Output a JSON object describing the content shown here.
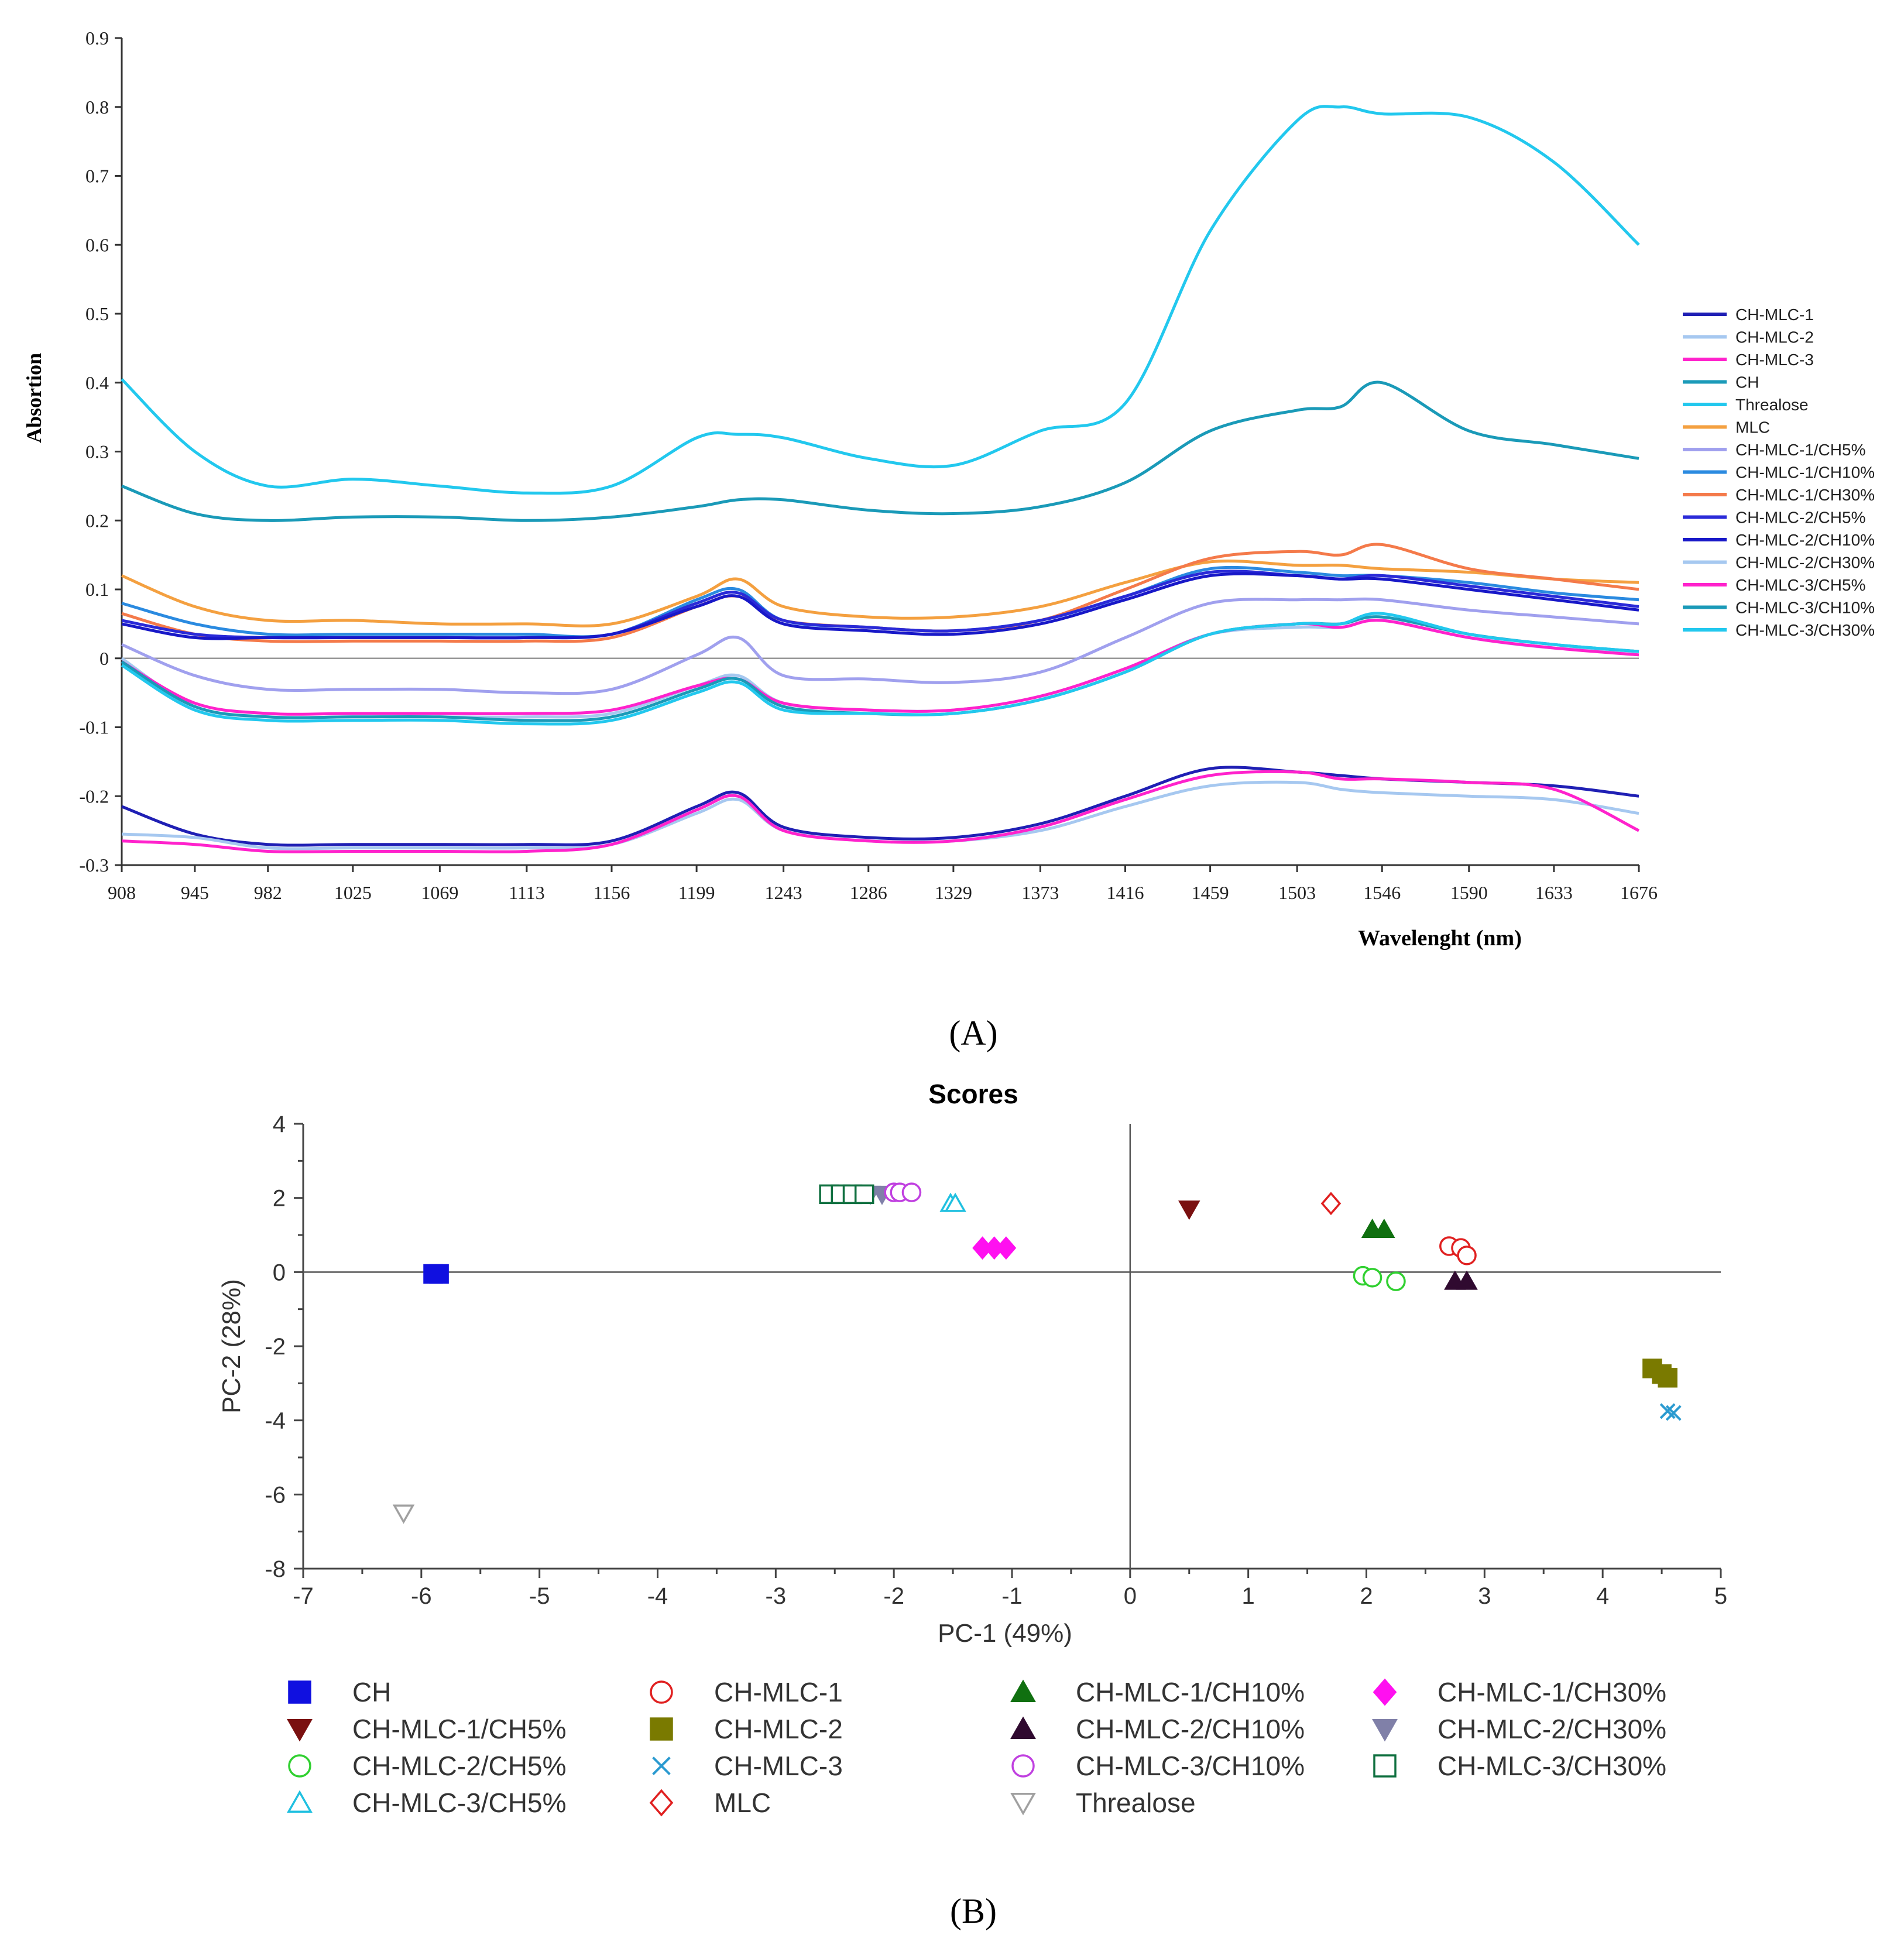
{
  "chart_data": [
    {
      "panel": "A",
      "type": "line",
      "panel_label": "(A)",
      "title": "",
      "xlabel": "Wavelenght (nm)",
      "ylabel": "Absortion",
      "xlim": [
        908,
        1676
      ],
      "ylim": [
        -0.3,
        0.9
      ],
      "xticks": [
        "908",
        "945",
        "982",
        "1025",
        "1069",
        "1113",
        "1156",
        "1199",
        "1243",
        "1286",
        "1329",
        "1373",
        "1416",
        "1459",
        "1503",
        "1546",
        "1590",
        "1633",
        "1676"
      ],
      "yticks": [
        "0.9",
        "0.8",
        "0.7",
        "0.6",
        "0.5",
        "0.4",
        "0.3",
        "0.2",
        "0.1",
        "0",
        "-0.1",
        "-0.2",
        "-0.3"
      ],
      "x": [
        908,
        945,
        982,
        1025,
        1069,
        1113,
        1156,
        1199,
        1220,
        1243,
        1286,
        1329,
        1373,
        1416,
        1459,
        1503,
        1525,
        1546,
        1590,
        1633,
        1676
      ],
      "series": [
        {
          "name": "CH-MLC-1",
          "color": "#1f1fb4",
          "values": [
            -0.215,
            -0.255,
            -0.27,
            -0.27,
            -0.27,
            -0.27,
            -0.265,
            -0.215,
            -0.195,
            -0.245,
            -0.26,
            -0.26,
            -0.24,
            -0.2,
            -0.16,
            -0.165,
            -0.17,
            -0.175,
            -0.18,
            -0.185,
            -0.2
          ]
        },
        {
          "name": "CH-MLC-2",
          "color": "#a6c8f0",
          "values": [
            -0.255,
            -0.26,
            -0.275,
            -0.275,
            -0.275,
            -0.275,
            -0.27,
            -0.225,
            -0.205,
            -0.25,
            -0.265,
            -0.265,
            -0.25,
            -0.215,
            -0.185,
            -0.18,
            -0.19,
            -0.195,
            -0.2,
            -0.205,
            -0.225
          ]
        },
        {
          "name": "CH-MLC-3",
          "color": "#ff22cc",
          "values": [
            -0.265,
            -0.27,
            -0.28,
            -0.28,
            -0.28,
            -0.28,
            -0.27,
            -0.22,
            -0.2,
            -0.25,
            -0.265,
            -0.265,
            -0.245,
            -0.205,
            -0.17,
            -0.165,
            -0.175,
            -0.175,
            -0.18,
            -0.19,
            -0.25
          ]
        },
        {
          "name": "CH",
          "color": "#1a9ab8",
          "values": [
            0.25,
            0.21,
            0.2,
            0.205,
            0.205,
            0.2,
            0.205,
            0.22,
            0.23,
            0.23,
            0.215,
            0.21,
            0.22,
            0.255,
            0.33,
            0.36,
            0.365,
            0.4,
            0.33,
            0.31,
            0.29
          ]
        },
        {
          "name": "Threalose",
          "color": "#22c8ee",
          "values": [
            0.405,
            0.3,
            0.25,
            0.26,
            0.25,
            0.24,
            0.25,
            0.32,
            0.325,
            0.32,
            0.29,
            0.28,
            0.33,
            0.37,
            0.62,
            0.78,
            0.8,
            0.79,
            0.785,
            0.72,
            0.6
          ]
        },
        {
          "name": "MLC",
          "color": "#f4a040",
          "values": [
            0.12,
            0.075,
            0.055,
            0.055,
            0.05,
            0.05,
            0.05,
            0.09,
            0.115,
            0.075,
            0.06,
            0.06,
            0.075,
            0.11,
            0.14,
            0.135,
            0.135,
            0.13,
            0.125,
            0.115,
            0.11
          ]
        },
        {
          "name": "CH-MLC-1/CH5%",
          "color": "#a0a0ee",
          "values": [
            0.02,
            -0.025,
            -0.045,
            -0.045,
            -0.045,
            -0.05,
            -0.045,
            0.005,
            0.03,
            -0.025,
            -0.03,
            -0.035,
            -0.02,
            0.03,
            0.08,
            0.085,
            0.085,
            0.085,
            0.07,
            0.06,
            0.05
          ]
        },
        {
          "name": "CH-MLC-1/CH10%",
          "color": "#2a8ae0",
          "values": [
            0.08,
            0.05,
            0.035,
            0.035,
            0.035,
            0.035,
            0.035,
            0.085,
            0.1,
            0.055,
            0.045,
            0.04,
            0.055,
            0.09,
            0.13,
            0.125,
            0.12,
            0.12,
            0.11,
            0.095,
            0.085
          ]
        },
        {
          "name": "CH-MLC-1/CH30%",
          "color": "#f47a4a",
          "values": [
            0.065,
            0.035,
            0.025,
            0.025,
            0.025,
            0.025,
            0.03,
            0.075,
            0.09,
            0.055,
            0.045,
            0.04,
            0.055,
            0.1,
            0.145,
            0.155,
            0.15,
            0.165,
            0.13,
            0.115,
            0.1
          ]
        },
        {
          "name": "CH-MLC-2/CH5%",
          "color": "#2a2ad8",
          "values": [
            0.055,
            0.035,
            0.03,
            0.03,
            0.03,
            0.03,
            0.035,
            0.08,
            0.095,
            0.055,
            0.045,
            0.04,
            0.055,
            0.09,
            0.125,
            0.12,
            0.115,
            0.12,
            0.105,
            0.09,
            0.075
          ]
        },
        {
          "name": "CH-MLC-2/CH10%",
          "color": "#1818c8",
          "values": [
            0.05,
            0.03,
            0.03,
            0.03,
            0.03,
            0.03,
            0.035,
            0.075,
            0.09,
            0.05,
            0.04,
            0.035,
            0.05,
            0.085,
            0.12,
            0.12,
            0.115,
            0.115,
            0.1,
            0.085,
            0.07
          ]
        },
        {
          "name": "CH-MLC-2/CH30%",
          "color": "#a6c8f0",
          "values": [
            0.0,
            -0.07,
            -0.085,
            -0.085,
            -0.085,
            -0.085,
            -0.08,
            -0.04,
            -0.025,
            -0.065,
            -0.075,
            -0.075,
            -0.055,
            -0.015,
            0.035,
            0.045,
            0.045,
            0.055,
            0.03,
            0.015,
            0.01
          ]
        },
        {
          "name": "CH-MLC-3/CH5%",
          "color": "#ff22cc",
          "values": [
            -0.005,
            -0.065,
            -0.08,
            -0.08,
            -0.08,
            -0.08,
            -0.075,
            -0.04,
            -0.03,
            -0.065,
            -0.075,
            -0.075,
            -0.055,
            -0.015,
            0.035,
            0.05,
            0.045,
            0.055,
            0.03,
            0.015,
            0.005
          ]
        },
        {
          "name": "CH-MLC-3/CH10%",
          "color": "#1a9ab8",
          "values": [
            -0.005,
            -0.07,
            -0.085,
            -0.085,
            -0.085,
            -0.09,
            -0.085,
            -0.045,
            -0.03,
            -0.07,
            -0.08,
            -0.08,
            -0.06,
            -0.02,
            0.035,
            0.05,
            0.05,
            0.06,
            0.035,
            0.02,
            0.01
          ]
        },
        {
          "name": "CH-MLC-3/CH30%",
          "color": "#22c8ee",
          "values": [
            -0.01,
            -0.075,
            -0.09,
            -0.09,
            -0.09,
            -0.095,
            -0.09,
            -0.05,
            -0.035,
            -0.075,
            -0.08,
            -0.08,
            -0.06,
            -0.02,
            0.035,
            0.05,
            0.05,
            0.065,
            0.035,
            0.02,
            0.01
          ]
        }
      ]
    },
    {
      "panel": "B",
      "type": "scatter",
      "panel_label": "(B)",
      "title": "Scores",
      "xlabel": "PC-1 (49%)",
      "ylabel": "PC-2 (28%)",
      "xlim": [
        -7,
        5
      ],
      "ylim": [
        -8,
        4
      ],
      "xticks": [
        "-7",
        "-6",
        "-5",
        "-4",
        "-3",
        "-2",
        "-1",
        "0",
        "1",
        "2",
        "3",
        "4",
        "5"
      ],
      "yticks": [
        "4",
        "2",
        "0",
        "-2",
        "-4",
        "-6",
        "-8"
      ],
      "series": [
        {
          "name": "CH",
          "color": "#1010e0",
          "marker": "square-filled",
          "points": [
            [
              -5.9,
              -0.05
            ],
            [
              -5.85,
              -0.05
            ]
          ]
        },
        {
          "name": "CH-MLC-1",
          "color": "#e02020",
          "marker": "circle-open",
          "points": [
            [
              2.7,
              0.7
            ],
            [
              2.8,
              0.65
            ],
            [
              2.85,
              0.45
            ]
          ]
        },
        {
          "name": "CH-MLC-1/CH10%",
          "color": "#107010",
          "marker": "triangle-up-filled",
          "points": [
            [
              2.05,
              1.15
            ],
            [
              2.15,
              1.15
            ]
          ]
        },
        {
          "name": "CH-MLC-1/CH30%",
          "color": "#ff10f0",
          "marker": "diamond-filled",
          "points": [
            [
              -1.25,
              0.65
            ],
            [
              -1.15,
              0.65
            ],
            [
              -1.05,
              0.65
            ]
          ]
        },
        {
          "name": "CH-MLC-1/CH5%",
          "color": "#7a1010",
          "marker": "triangle-down-filled",
          "points": [
            [
              0.5,
              1.7
            ]
          ]
        },
        {
          "name": "CH-MLC-2",
          "color": "#7a7a00",
          "marker": "square-filled",
          "points": [
            [
              4.42,
              -2.6
            ],
            [
              4.5,
              -2.75
            ],
            [
              4.55,
              -2.85
            ]
          ]
        },
        {
          "name": "CH-MLC-2/CH10%",
          "color": "#300a30",
          "marker": "triangle-up-filled",
          "points": [
            [
              2.75,
              -0.25
            ],
            [
              2.85,
              -0.25
            ]
          ]
        },
        {
          "name": "CH-MLC-2/CH30%",
          "color": "#8080a8",
          "marker": "triangle-down-filled",
          "points": [
            [
              -2.2,
              2.1
            ],
            [
              -2.1,
              2.1
            ]
          ]
        },
        {
          "name": "CH-MLC-2/CH5%",
          "color": "#30d030",
          "marker": "circle-open",
          "points": [
            [
              1.97,
              -0.1
            ],
            [
              2.05,
              -0.15
            ],
            [
              2.25,
              -0.25
            ]
          ]
        },
        {
          "name": "CH-MLC-3",
          "color": "#2a9ad0",
          "marker": "x",
          "points": [
            [
              4.55,
              -3.75
            ],
            [
              4.6,
              -3.8
            ]
          ]
        },
        {
          "name": "CH-MLC-3/CH10%",
          "color": "#c040e0",
          "marker": "circle-open",
          "points": [
            [
              -2.0,
              2.15
            ],
            [
              -1.95,
              2.15
            ],
            [
              -1.85,
              2.15
            ]
          ]
        },
        {
          "name": "CH-MLC-3/CH30%",
          "color": "#107040",
          "marker": "square-open",
          "points": [
            [
              -2.55,
              2.1
            ],
            [
              -2.45,
              2.1
            ],
            [
              -2.35,
              2.1
            ],
            [
              -2.25,
              2.1
            ]
          ]
        },
        {
          "name": "CH-MLC-3/CH5%",
          "color": "#20c0e0",
          "marker": "triangle-up-open",
          "points": [
            [
              -1.52,
              1.85
            ],
            [
              -1.48,
              1.85
            ]
          ]
        },
        {
          "name": "MLC",
          "color": "#e02020",
          "marker": "diamond-open",
          "points": [
            [
              1.7,
              1.85
            ]
          ]
        },
        {
          "name": "Threalose",
          "color": "#a0a0a0",
          "marker": "triangle-down-open",
          "points": [
            [
              -6.15,
              -6.5
            ]
          ]
        }
      ],
      "legend_order": [
        "CH",
        "CH-MLC-1/CH5%",
        "CH-MLC-2/CH5%",
        "CH-MLC-3/CH5%",
        "CH-MLC-1",
        "CH-MLC-2",
        "CH-MLC-3",
        "MLC",
        "CH-MLC-1/CH10%",
        "CH-MLC-2/CH10%",
        "CH-MLC-3/CH10%",
        "Threalose",
        "CH-MLC-1/CH30%",
        "CH-MLC-2/CH30%",
        "CH-MLC-3/CH30%"
      ]
    }
  ]
}
